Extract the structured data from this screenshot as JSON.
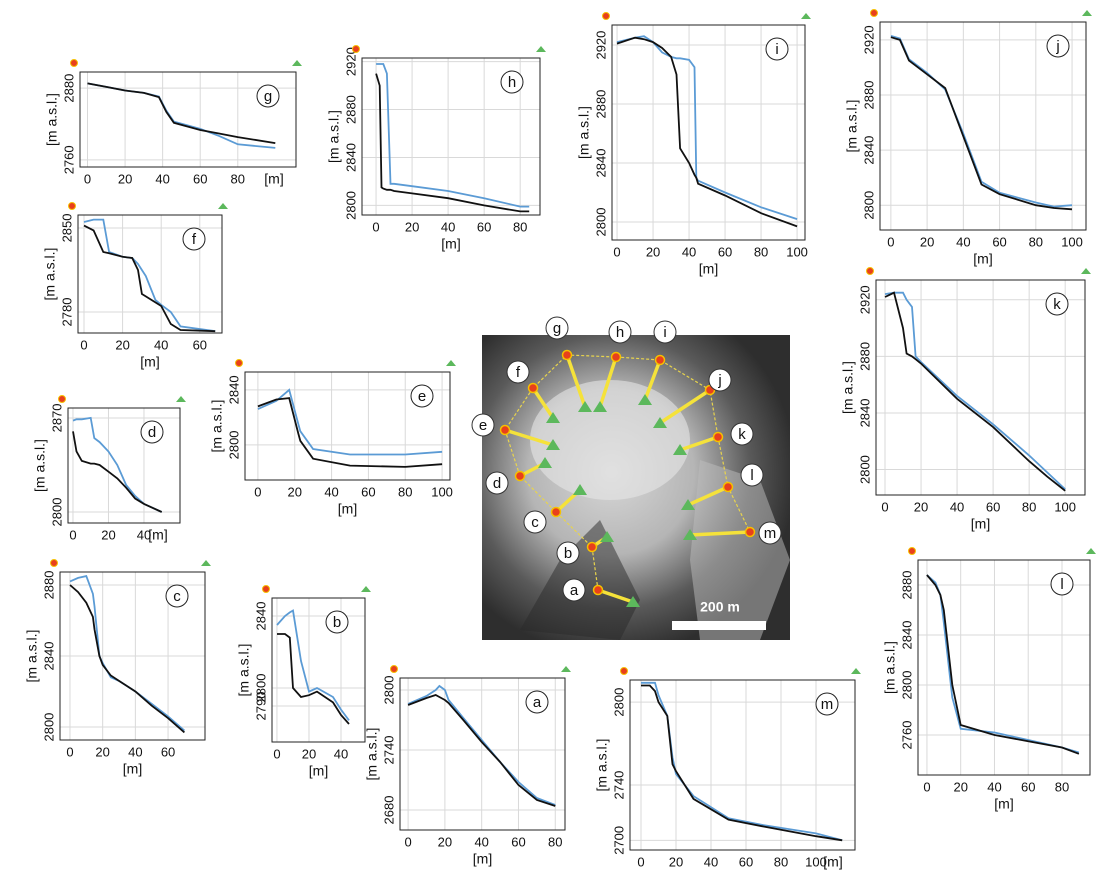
{
  "chart_data": [
    {
      "type": "line",
      "title": "g",
      "x_label": "[m]",
      "y_label": "[m a.s.l.]",
      "grid": true,
      "xlim": [
        -4,
        111
      ],
      "ylim": [
        2748,
        2907
      ],
      "xticks": [
        0,
        20,
        40,
        60,
        80
      ],
      "yticks": [
        2760,
        2880
      ],
      "x": [
        0,
        10,
        20,
        30,
        38,
        42,
        46,
        60,
        70,
        80,
        100
      ],
      "series": [
        {
          "color": "#5b9bd5",
          "values": [
            2888,
            2882,
            2876,
            2872,
            2866,
            2842,
            2824,
            2812,
            2800,
            2786,
            2780
          ]
        },
        {
          "color": "#111111",
          "values": [
            2888,
            2882,
            2876,
            2872,
            2865,
            2840,
            2822,
            2810,
            2804,
            2798,
            2788
          ]
        }
      ]
    },
    {
      "type": "line",
      "title": "h",
      "x_label": "[m]",
      "y_label": "[m a.s.l.]",
      "grid": true,
      "xlim": [
        -7.8,
        91
      ],
      "ylim": [
        2792,
        2923
      ],
      "xticks": [
        0,
        20,
        40,
        60,
        80
      ],
      "yticks": [
        2800,
        2840,
        2880,
        2920
      ],
      "x": [
        0,
        2,
        3,
        4,
        6,
        8,
        10,
        20,
        40,
        60,
        80,
        85
      ],
      "series": [
        {
          "color": "#5b9bd5",
          "values": [
            2918,
            2918,
            2918,
            2918,
            2910,
            2818,
            2818,
            2816,
            2812,
            2806,
            2799,
            2799
          ]
        },
        {
          "color": "#111111",
          "values": [
            2910,
            2900,
            2815,
            2814,
            2813,
            2813,
            2812,
            2810,
            2806,
            2800,
            2795,
            2795
          ]
        }
      ]
    },
    {
      "type": "line",
      "title": "i",
      "x_label": "[m]",
      "y_label": "[m a.s.l.]",
      "grid": true,
      "xlim": [
        -2.8,
        104.4
      ],
      "ylim": [
        2787.8,
        2933.6
      ],
      "xticks": [
        0,
        20,
        40,
        60,
        80,
        100
      ],
      "yticks": [
        2800,
        2840,
        2880,
        2920
      ],
      "x": [
        0,
        10,
        15,
        20,
        25,
        30,
        33,
        35,
        40,
        43,
        44,
        45,
        60,
        80,
        100
      ],
      "series": [
        {
          "color": "#5b9bd5",
          "values": [
            2922,
            2925,
            2926,
            2922,
            2915,
            2912,
            2911,
            2911,
            2910,
            2905,
            2830,
            2828,
            2820,
            2810,
            2802
          ]
        },
        {
          "color": "#111111",
          "values": [
            2921,
            2925,
            2924,
            2922,
            2918,
            2912,
            2900,
            2850,
            2840,
            2832,
            2830,
            2826,
            2818,
            2806,
            2797
          ]
        }
      ]
    },
    {
      "type": "line",
      "title": "j",
      "x_label": "[m]",
      "y_label": "[m a.s.l.]",
      "grid": true,
      "xlim": [
        -6,
        107.7
      ],
      "ylim": [
        2782,
        2933
      ],
      "xticks": [
        0,
        20,
        40,
        60,
        80,
        100
      ],
      "yticks": [
        2800,
        2840,
        2880,
        2920
      ],
      "x": [
        0,
        5,
        10,
        20,
        30,
        40,
        50,
        60,
        80,
        90,
        100
      ],
      "series": [
        {
          "color": "#5b9bd5",
          "values": [
            2923,
            2921,
            2906,
            2896,
            2884,
            2852,
            2817,
            2809,
            2802,
            2799,
            2800
          ]
        },
        {
          "color": "#111111",
          "values": [
            2922,
            2920,
            2905,
            2895,
            2885,
            2850,
            2815,
            2808,
            2800,
            2798,
            2797
          ]
        }
      ]
    },
    {
      "type": "line",
      "title": "f",
      "x_label": "[m]",
      "y_label": "[m a.s.l.]",
      "grid": true,
      "xlim": [
        -3.1,
        71.5
      ],
      "ylim": [
        2762.5,
        2860.8
      ],
      "xticks": [
        0,
        20,
        40,
        60
      ],
      "yticks": [
        2780,
        2850
      ],
      "x": [
        0,
        5,
        10,
        13,
        20,
        25,
        28,
        30,
        32,
        37,
        40,
        45,
        50,
        68
      ],
      "series": [
        {
          "color": "#5b9bd5",
          "values": [
            2855,
            2857,
            2857,
            2830,
            2826,
            2825,
            2820,
            2815,
            2810,
            2790,
            2786,
            2780,
            2768,
            2764
          ]
        },
        {
          "color": "#111111",
          "values": [
            2852,
            2848,
            2830,
            2829,
            2826,
            2825,
            2815,
            2795,
            2793,
            2788,
            2785,
            2770,
            2765,
            2764
          ]
        }
      ]
    },
    {
      "type": "line",
      "title": "d",
      "x_label": "[m]",
      "y_label": "[m a.s.l.]",
      "grid": true,
      "xlim": [
        -2.8,
        60.3
      ],
      "ylim": [
        2791.8,
        2877.4
      ],
      "xticks": [
        0,
        20,
        40
      ],
      "yticks": [
        2800,
        2870
      ],
      "x": [
        0,
        2,
        5,
        10,
        12,
        15,
        20,
        25,
        30,
        35,
        40,
        50
      ],
      "series": [
        {
          "color": "#5b9bd5",
          "values": [
            2868,
            2869,
            2869,
            2870,
            2855,
            2852,
            2845,
            2835,
            2820,
            2812,
            2806,
            2800
          ]
        },
        {
          "color": "#111111",
          "values": [
            2860,
            2845,
            2838,
            2836,
            2836,
            2835,
            2830,
            2825,
            2818,
            2810,
            2806,
            2800
          ]
        }
      ]
    },
    {
      "type": "line",
      "title": "e",
      "x_label": "[m]",
      "y_label": "[m a.s.l.]",
      "grid": true,
      "xlim": [
        -7,
        104.3
      ],
      "ylim": [
        2774.5,
        2853
      ],
      "xticks": [
        0,
        20,
        40,
        60,
        80,
        100
      ],
      "yticks": [
        2800,
        2840
      ],
      "x": [
        0,
        10,
        17,
        22,
        23,
        30,
        50,
        80,
        100
      ],
      "series": [
        {
          "color": "#5b9bd5",
          "values": [
            2826,
            2832,
            2840,
            2815,
            2810,
            2797,
            2793,
            2793,
            2795
          ]
        },
        {
          "color": "#111111",
          "values": [
            2828,
            2833,
            2834,
            2808,
            2803,
            2790,
            2785,
            2784,
            2786
          ]
        }
      ]
    },
    {
      "type": "line",
      "title": "c",
      "x_label": "[m]",
      "y_label": "[m a.s.l.]",
      "grid": true,
      "xlim": [
        -6.1,
        82.6
      ],
      "ylim": [
        2792.7,
        2887.3
      ],
      "xticks": [
        0,
        20,
        40,
        60
      ],
      "yticks": [
        2800,
        2840,
        2880
      ],
      "x": [
        0,
        5,
        10,
        14,
        15,
        18,
        20,
        25,
        30,
        40,
        50,
        60,
        70
      ],
      "series": [
        {
          "color": "#5b9bd5",
          "values": [
            2882,
            2884,
            2885,
            2875,
            2868,
            2840,
            2836,
            2828,
            2826,
            2820,
            2813,
            2806,
            2798
          ]
        },
        {
          "color": "#111111",
          "values": [
            2880,
            2876,
            2870,
            2862,
            2855,
            2840,
            2835,
            2829,
            2826,
            2820,
            2812,
            2805,
            2797
          ]
        }
      ]
    },
    {
      "type": "line",
      "title": "b",
      "x_label": "[m]",
      "y_label": "[m a.s.l.]",
      "grid": true,
      "xlim": [
        -3.1,
        55
      ],
      "ylim": [
        2770,
        2850
      ],
      "xticks": [
        0,
        20,
        40
      ],
      "yticks": [
        2790,
        2800,
        2840
      ],
      "x": [
        0,
        5,
        8,
        10,
        15,
        20,
        25,
        35,
        40,
        45
      ],
      "series": [
        {
          "color": "#5b9bd5",
          "values": [
            2835,
            2840,
            2842,
            2843,
            2815,
            2798,
            2800,
            2795,
            2788,
            2782
          ]
        },
        {
          "color": "#111111",
          "values": [
            2830,
            2830,
            2828,
            2800,
            2795,
            2796,
            2798,
            2792,
            2785,
            2780
          ]
        }
      ]
    },
    {
      "type": "line",
      "title": "a",
      "x_label": "[m]",
      "y_label": "[m a.s.l.]",
      "grid": true,
      "xlim": [
        -4.4,
        85.3
      ],
      "ylim": [
        2660,
        2812
      ],
      "xticks": [
        0,
        20,
        40,
        60,
        80
      ],
      "yticks": [
        2680,
        2740,
        2800
      ],
      "x": [
        0,
        10,
        15,
        17,
        20,
        22,
        30,
        40,
        50,
        60,
        70,
        80
      ],
      "series": [
        {
          "color": "#5b9bd5",
          "values": [
            2786,
            2794,
            2800,
            2804,
            2800,
            2790,
            2772,
            2750,
            2728,
            2708,
            2692,
            2685
          ]
        },
        {
          "color": "#111111",
          "values": [
            2785,
            2792,
            2795,
            2793,
            2790,
            2787,
            2770,
            2748,
            2728,
            2705,
            2690,
            2684
          ]
        }
      ]
    },
    {
      "type": "line",
      "title": "m",
      "x_label": "[m]",
      "y_label": "[m a.s.l.]",
      "grid": true,
      "xlim": [
        -6.3,
        122.3
      ],
      "ylim": [
        2693,
        2816
      ],
      "xticks": [
        0,
        20,
        40,
        60,
        80,
        100
      ],
      "yticks": [
        2700,
        2740,
        2800
      ],
      "x": [
        0,
        5,
        8,
        10,
        15,
        18,
        20,
        30,
        50,
        70,
        100,
        115
      ],
      "series": [
        {
          "color": "#5b9bd5",
          "values": [
            2814,
            2814,
            2814,
            2805,
            2790,
            2760,
            2748,
            2732,
            2716,
            2711,
            2705,
            2700
          ]
        },
        {
          "color": "#111111",
          "values": [
            2812,
            2812,
            2808,
            2800,
            2790,
            2755,
            2750,
            2730,
            2715,
            2710,
            2703,
            2700
          ]
        }
      ]
    },
    {
      "type": "line",
      "title": "k",
      "x_label": "[m]",
      "y_label": "[m a.s.l.]",
      "grid": true,
      "xlim": [
        -5,
        111
      ],
      "ylim": [
        2782,
        2934
      ],
      "xticks": [
        0,
        20,
        40,
        60,
        80,
        100
      ],
      "yticks": [
        2800,
        2840,
        2880,
        2920
      ],
      "x": [
        0,
        5,
        10,
        12,
        15,
        17,
        20,
        40,
        60,
        80,
        90,
        100
      ],
      "series": [
        {
          "color": "#5b9bd5",
          "values": [
            2924,
            2925,
            2925,
            2920,
            2915,
            2880,
            2876,
            2852,
            2832,
            2810,
            2798,
            2786
          ]
        },
        {
          "color": "#111111",
          "values": [
            2922,
            2925,
            2900,
            2882,
            2880,
            2878,
            2875,
            2850,
            2830,
            2806,
            2795,
            2785
          ]
        }
      ]
    },
    {
      "type": "line",
      "title": "l",
      "x_label": "[m]",
      "y_label": "[m a.s.l.]",
      "grid": true,
      "xlim": [
        -5.3,
        96.6
      ],
      "ylim": [
        2728,
        2900
      ],
      "xticks": [
        0,
        20,
        40,
        60,
        80
      ],
      "yticks": [
        2760,
        2800,
        2840,
        2880
      ],
      "x": [
        0,
        5,
        8,
        10,
        15,
        20,
        40,
        60,
        80,
        90
      ],
      "series": [
        {
          "color": "#5b9bd5",
          "values": [
            2888,
            2882,
            2872,
            2850,
            2790,
            2765,
            2762,
            2756,
            2750,
            2746
          ]
        },
        {
          "color": "#111111",
          "values": [
            2888,
            2880,
            2872,
            2860,
            2800,
            2768,
            2760,
            2755,
            2750,
            2745
          ]
        }
      ]
    }
  ],
  "map": {
    "labels": [
      "a",
      "b",
      "c",
      "d",
      "e",
      "f",
      "g",
      "h",
      "i",
      "j",
      "k",
      "l",
      "m"
    ],
    "scale_label": "200 m"
  }
}
